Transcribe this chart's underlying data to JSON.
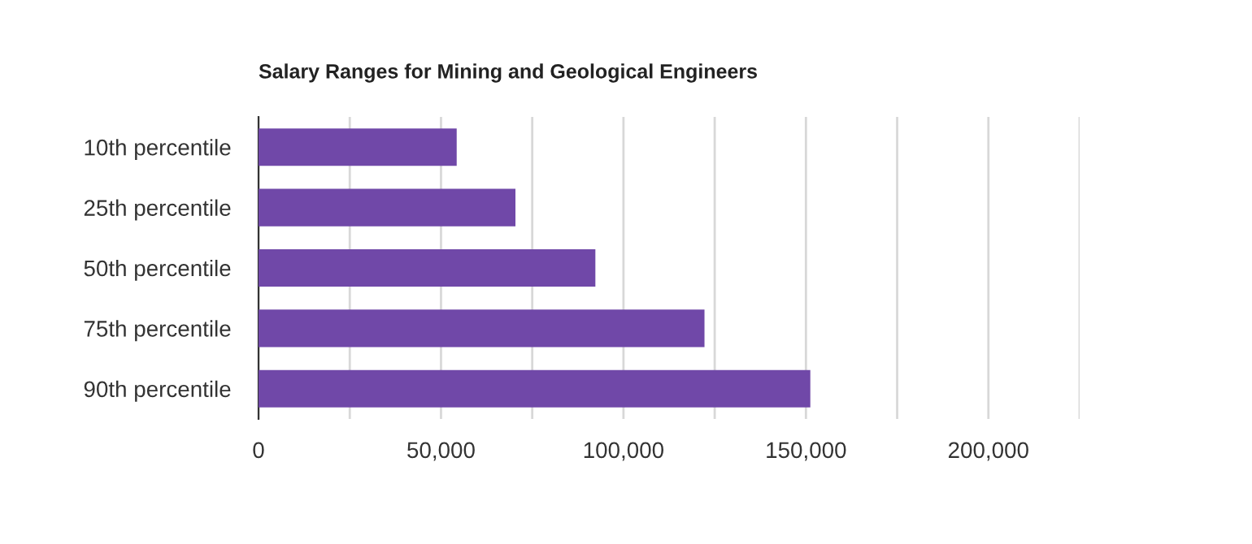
{
  "chart_data": {
    "type": "bar",
    "orientation": "horizontal",
    "title": "Salary Ranges for Mining and Geological Engineers",
    "categories": [
      "10th percentile",
      "25th percentile",
      "50th percentile",
      "75th percentile",
      "90th percentile"
    ],
    "values": [
      54300,
      70400,
      92300,
      122200,
      151200
    ],
    "color": "#7048a8",
    "xlim": [
      0,
      225000
    ],
    "xticks": [
      0,
      {
        "value": 25000,
        "label": null
      },
      {
        "value": 50000,
        "label": "50,000"
      },
      {
        "value": 75000,
        "label": null
      },
      {
        "value": 100000,
        "label": "100,000"
      },
      {
        "value": 125000,
        "label": null
      },
      {
        "value": 150000,
        "label": "150,000"
      },
      {
        "value": 175000,
        "label": null
      },
      {
        "value": 200000,
        "label": "200,000"
      },
      {
        "value": 225000,
        "label": null
      }
    ],
    "grid": "x",
    "legend": false
  }
}
